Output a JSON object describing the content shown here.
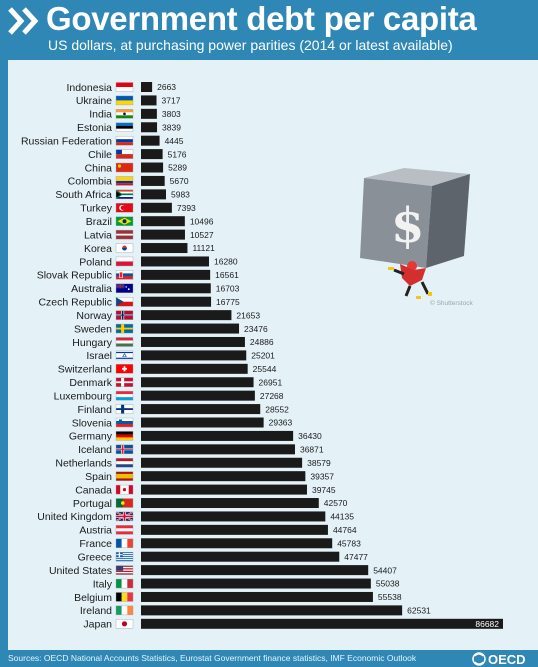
{
  "header": {
    "title": "Government debt per capita",
    "subtitle": "US dollars, at purchasing power parities (2014 or latest available)"
  },
  "illustration": {
    "icon": "falling-money-block-illustration",
    "watermark": "© Shutterstock"
  },
  "footer": {
    "source": "Sources: OECD National Accounts Statistics, Eurostat Government finance statistics, IMF Economic Outlook",
    "logo_text": "OECD"
  },
  "colors": {
    "bar": "#1a1a1a",
    "header_bg": "#2e87b4",
    "panel_bg": "#e4f2f8"
  },
  "chart_data": {
    "type": "bar",
    "orientation": "horizontal",
    "categories": [
      "Indonesia",
      "Ukraine",
      "India",
      "Estonia",
      "Russian Federation",
      "Chile",
      "China",
      "Colombia",
      "South Africa",
      "Turkey",
      "Brazil",
      "Latvia",
      "Korea",
      "Poland",
      "Slovak Republic",
      "Australia",
      "Czech Republic",
      "Norway",
      "Sweden",
      "Hungary",
      "Israel",
      "Switzerland",
      "Denmark",
      "Luxembourg",
      "Finland",
      "Slovenia",
      "Germany",
      "Iceland",
      "Netherlands",
      "Spain",
      "Canada",
      "Portugal",
      "United Kingdom",
      "Austria",
      "France",
      "Greece",
      "United States",
      "Italy",
      "Belgium",
      "Ireland",
      "Japan"
    ],
    "values": [
      2663,
      3717,
      3803,
      3839,
      4445,
      5176,
      5289,
      5670,
      5983,
      7393,
      10496,
      10527,
      11121,
      16280,
      16561,
      16703,
      16775,
      21653,
      23476,
      24886,
      25201,
      25544,
      26951,
      27268,
      28552,
      29363,
      36430,
      36871,
      38579,
      39357,
      39745,
      42570,
      44135,
      44764,
      45783,
      47477,
      54407,
      55038,
      55538,
      62531,
      86682
    ],
    "flags": [
      "flag-indonesia",
      "flag-ukraine",
      "flag-india",
      "flag-estonia",
      "flag-russia",
      "flag-chile",
      "flag-china",
      "flag-colombia",
      "flag-south-africa",
      "flag-turkey",
      "flag-brazil",
      "flag-latvia",
      "flag-korea",
      "flag-poland",
      "flag-slovakia",
      "flag-australia",
      "flag-czech-republic",
      "flag-norway",
      "flag-sweden",
      "flag-hungary",
      "flag-israel",
      "flag-switzerland",
      "flag-denmark",
      "flag-luxembourg",
      "flag-finland",
      "flag-slovenia",
      "flag-germany",
      "flag-iceland",
      "flag-netherlands",
      "flag-spain",
      "flag-canada",
      "flag-portugal",
      "flag-united-kingdom",
      "flag-austria",
      "flag-france",
      "flag-greece",
      "flag-united-states",
      "flag-italy",
      "flag-belgium",
      "flag-ireland",
      "flag-japan"
    ],
    "xlim": [
      0,
      86682
    ],
    "grid": false,
    "legend": false
  }
}
